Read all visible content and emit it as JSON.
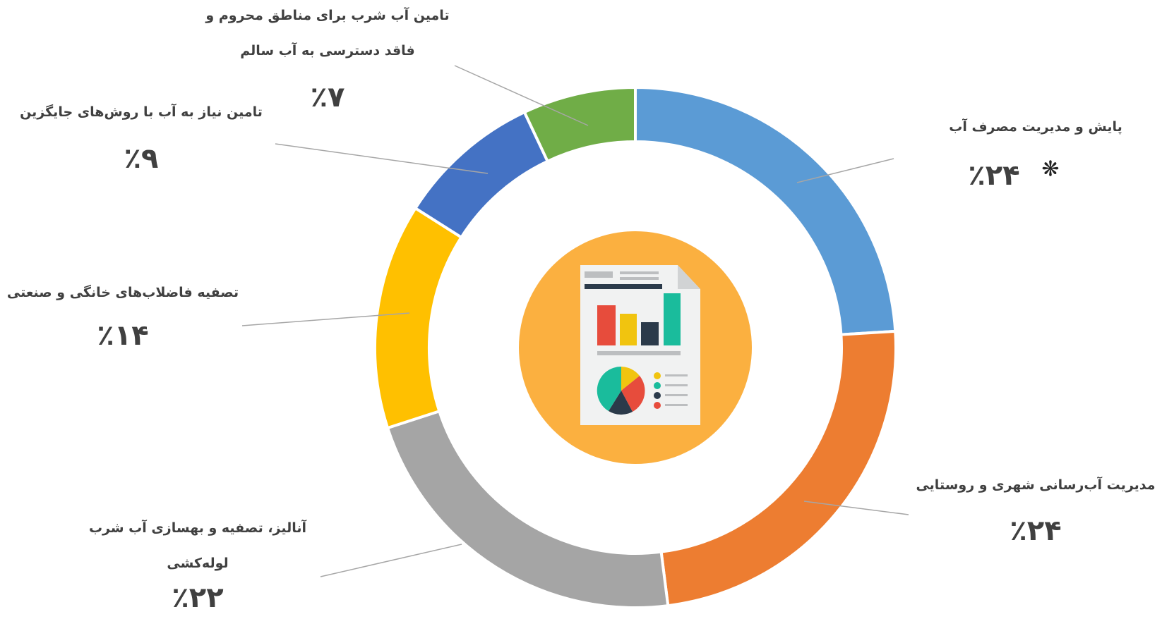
{
  "chart_data": {
    "type": "pie",
    "categories": [
      "پایش و مدیریت مصرف آب",
      "مدیریت آب‌رسانی شهری و روستایی",
      "آنالیز، تصفیه و بهسازی آب شرب لوله‌کشی",
      "تصفیه فاضلاب‌های خانگی و صنعتی",
      "تامین نیاز به آب با روش‌های جایگزین",
      "تامین آب شرب برای مناطق محروم و فاقد دسترسی به آب سالم"
    ],
    "values": [
      24,
      24,
      22,
      14,
      9,
      7
    ],
    "value_labels": [
      "٪۲۴",
      "٪۲۴",
      "٪۲۲",
      "٪۱۴",
      "٪۹",
      "٪۷"
    ],
    "colors": [
      "#5b9bd5",
      "#ed7d31",
      "#a5a5a5",
      "#ffc000",
      "#4472c4",
      "#70ad47"
    ],
    "annotation": "❋"
  }
}
